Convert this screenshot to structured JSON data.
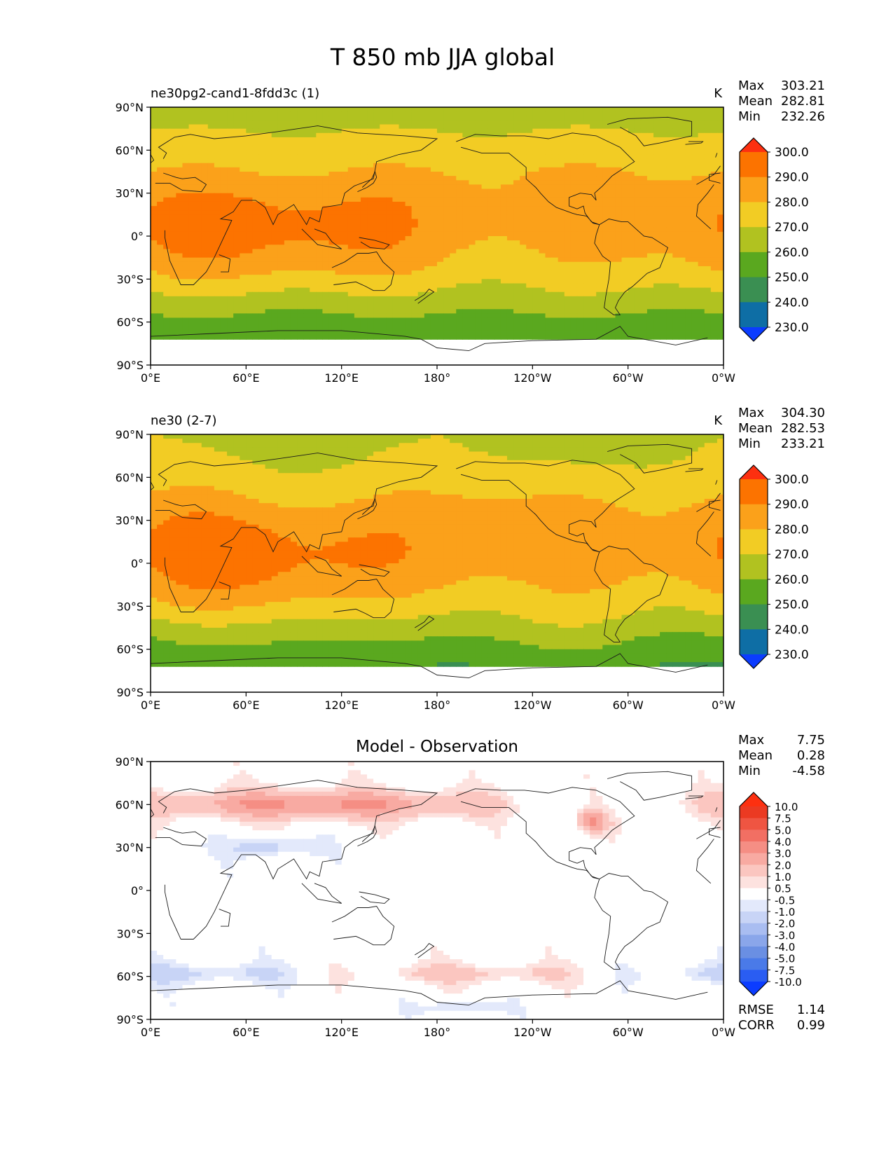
{
  "figure_title": "T 850 mb JJA global",
  "chart_data": [
    {
      "type": "heatmap",
      "panel": "test",
      "title": "ne30pg2-cand1-8fdd3c (1)",
      "units": "K",
      "stats": {
        "Max": "303.21",
        "Mean": "282.81",
        "Min": "232.26"
      },
      "xlim": [
        0,
        360
      ],
      "ylim": [
        -90,
        90
      ],
      "xticks": [
        "0°E",
        "60°E",
        "120°E",
        "180°",
        "120°W",
        "60°W",
        "0°W"
      ],
      "yticks": [
        "90°N",
        "60°N",
        "30°N",
        "0°",
        "30°S",
        "60°S",
        "90°S"
      ],
      "colorbar_levels": [
        "230.0",
        "240.0",
        "250.0",
        "260.0",
        "270.0",
        "280.0",
        "290.0",
        "300.0"
      ],
      "colorbar_colors": [
        "#0b3cff",
        "#0e6ea5",
        "#3a8f52",
        "#5aa81f",
        "#b1c220",
        "#f2cc24",
        "#fba11a",
        "#fc7300",
        "#fd3010"
      ],
      "extend": "both"
    },
    {
      "type": "heatmap",
      "panel": "reference",
      "title": "ne30 (2-7)",
      "units": "K",
      "stats": {
        "Max": "304.30",
        "Mean": "282.53",
        "Min": "233.21"
      },
      "xlim": [
        0,
        360
      ],
      "ylim": [
        -90,
        90
      ],
      "xticks": [
        "0°E",
        "60°E",
        "120°E",
        "180°",
        "120°W",
        "60°W",
        "0°W"
      ],
      "yticks": [
        "90°N",
        "60°N",
        "30°N",
        "0°",
        "30°S",
        "60°S",
        "90°S"
      ],
      "colorbar_levels": [
        "230.0",
        "240.0",
        "250.0",
        "260.0",
        "270.0",
        "280.0",
        "290.0",
        "300.0"
      ],
      "colorbar_colors": [
        "#0b3cff",
        "#0e6ea5",
        "#3a8f52",
        "#5aa81f",
        "#b1c220",
        "#f2cc24",
        "#fba11a",
        "#fc7300",
        "#fd3010"
      ],
      "extend": "both"
    },
    {
      "type": "heatmap",
      "panel": "difference",
      "title": "Model - Observation",
      "units": "",
      "stats": {
        "Max": "7.75",
        "Mean": "0.28",
        "Min": "-4.58"
      },
      "metrics": {
        "RMSE": "1.14",
        "CORR": "0.99"
      },
      "xlim": [
        0,
        360
      ],
      "ylim": [
        -90,
        90
      ],
      "xticks": [
        "0°E",
        "60°E",
        "120°E",
        "180°",
        "120°W",
        "60°W",
        "0°W"
      ],
      "yticks": [
        "90°N",
        "60°N",
        "30°N",
        "0°",
        "30°S",
        "60°S",
        "90°S"
      ],
      "colorbar_levels": [
        "-10.0",
        "-7.5",
        "-5.0",
        "-4.0",
        "-3.0",
        "-2.0",
        "-1.0",
        "-0.5",
        "0.5",
        "1.0",
        "2.0",
        "3.0",
        "4.0",
        "5.0",
        "7.5",
        "10.0"
      ],
      "colorbar_colors": [
        "#0b3cff",
        "#2a5df2",
        "#4a7ae8",
        "#6a8fe3",
        "#8aa6ea",
        "#a9bdf1",
        "#c8d4f6",
        "#e3e9fb",
        "#ffffff",
        "#fde2df",
        "#fbc6c0",
        "#f8aaa2",
        "#f58e84",
        "#f26f63",
        "#ef5542",
        "#eb3a22",
        "#fd3010"
      ],
      "extend": "both"
    }
  ]
}
